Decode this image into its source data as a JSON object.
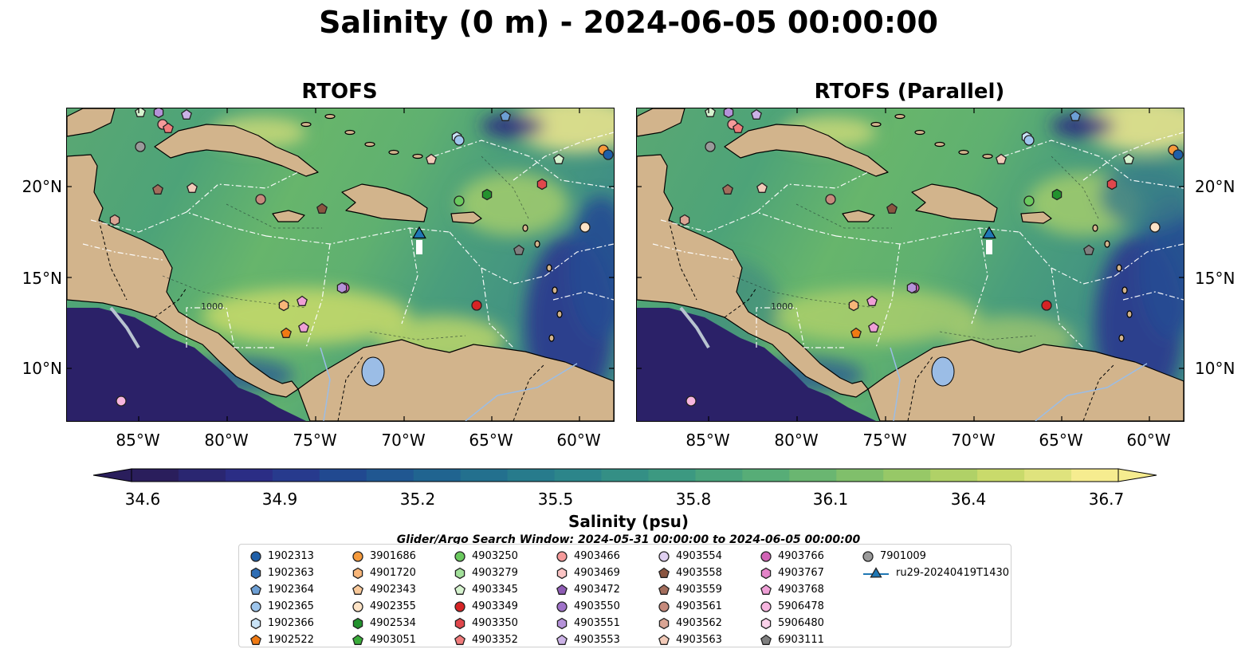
{
  "title": "Salinity (0 m) - 2024-06-05 00:00:00",
  "panels": [
    {
      "title": "RTOFS"
    },
    {
      "title": "RTOFS (Parallel)"
    }
  ],
  "axes": {
    "lat_labels": [
      "20°N",
      "15°N",
      "10°N"
    ],
    "lon_labels": [
      "85°W",
      "80°W",
      "75°W",
      "70°W",
      "65°W",
      "60°W"
    ],
    "contour_label": "1000"
  },
  "colorbar": {
    "label": "Salinity (psu)",
    "ticks": [
      "34.6",
      "34.9",
      "35.2",
      "35.5",
      "35.8",
      "36.1",
      "36.4",
      "36.7"
    ],
    "min": 34.6,
    "max": 36.7,
    "extend": "both",
    "colormap": [
      "#2a1e5c",
      "#2b2f8a",
      "#1f4f92",
      "#216d8f",
      "#2b848a",
      "#3d9a80",
      "#5bb075",
      "#8cc467",
      "#c4d867",
      "#f6ec8f"
    ]
  },
  "search_window": "Glider/Argo Search Window: 2024-05-31 00:00:00 to 2024-06-05 00:00:00",
  "legend": [
    {
      "label": "1902313",
      "marker": "circle",
      "color": "#1f5fa8"
    },
    {
      "label": "1902363",
      "marker": "hexagon",
      "color": "#2e6db4"
    },
    {
      "label": "1902364",
      "marker": "pentagon",
      "color": "#6d9fd4"
    },
    {
      "label": "1902365",
      "marker": "circle",
      "color": "#9dc5ec"
    },
    {
      "label": "1902366",
      "marker": "hexagon",
      "color": "#c9e3f7"
    },
    {
      "label": "1902522",
      "marker": "pentagon",
      "color": "#f07a13"
    },
    {
      "label": "3901686",
      "marker": "circle",
      "color": "#f59a3c"
    },
    {
      "label": "4901720",
      "marker": "hexagon",
      "color": "#f8b679"
    },
    {
      "label": "4902343",
      "marker": "pentagon",
      "color": "#f9c99a"
    },
    {
      "label": "4902355",
      "marker": "circle",
      "color": "#fde3c6"
    },
    {
      "label": "4902534",
      "marker": "hexagon",
      "color": "#23922e"
    },
    {
      "label": "4903051",
      "marker": "pentagon",
      "color": "#3aac3a"
    },
    {
      "label": "4903250",
      "marker": "circle",
      "color": "#6ac95e"
    },
    {
      "label": "4903279",
      "marker": "hexagon",
      "color": "#a2e09a"
    },
    {
      "label": "4903345",
      "marker": "pentagon",
      "color": "#d6f3cf"
    },
    {
      "label": "4903349",
      "marker": "circle",
      "color": "#d62425"
    },
    {
      "label": "4903350",
      "marker": "hexagon",
      "color": "#e0474c"
    },
    {
      "label": "4903352",
      "marker": "pentagon",
      "color": "#f07b7b"
    },
    {
      "label": "4903466",
      "marker": "circle",
      "color": "#f59a9a"
    },
    {
      "label": "4903469",
      "marker": "hexagon",
      "color": "#fbc4c4"
    },
    {
      "label": "4903472",
      "marker": "pentagon",
      "color": "#8e5cb5"
    },
    {
      "label": "4903550",
      "marker": "circle",
      "color": "#9f72c9"
    },
    {
      "label": "4903551",
      "marker": "hexagon",
      "color": "#b592d9"
    },
    {
      "label": "4903553",
      "marker": "pentagon",
      "color": "#cbb2e6"
    },
    {
      "label": "4903554",
      "marker": "circle",
      "color": "#e0d0f1"
    },
    {
      "label": "4903558",
      "marker": "pentagon",
      "color": "#8a5540"
    },
    {
      "label": "4903559",
      "marker": "pentagon",
      "color": "#a36d5c"
    },
    {
      "label": "4903561",
      "marker": "circle",
      "color": "#c68a7c"
    },
    {
      "label": "4903562",
      "marker": "hexagon",
      "color": "#daa594"
    },
    {
      "label": "4903563",
      "marker": "pentagon",
      "color": "#f2cab8"
    },
    {
      "label": "4903766",
      "marker": "circle",
      "color": "#d163b5"
    },
    {
      "label": "4903767",
      "marker": "hexagon",
      "color": "#e383c8"
    },
    {
      "label": "4903768",
      "marker": "pentagon",
      "color": "#ef9fd6"
    },
    {
      "label": "5906478",
      "marker": "circle",
      "color": "#f7b5df"
    },
    {
      "label": "5906480",
      "marker": "hexagon",
      "color": "#fbd2ea"
    },
    {
      "label": "6903111",
      "marker": "pentagon",
      "color": "#7f7f7f"
    },
    {
      "label": "7901009",
      "marker": "circle",
      "color": "#9a9a9a"
    },
    {
      "label": "ru29-20240419T1430",
      "marker": "triangle-line",
      "color": "#1f77b4"
    }
  ]
}
